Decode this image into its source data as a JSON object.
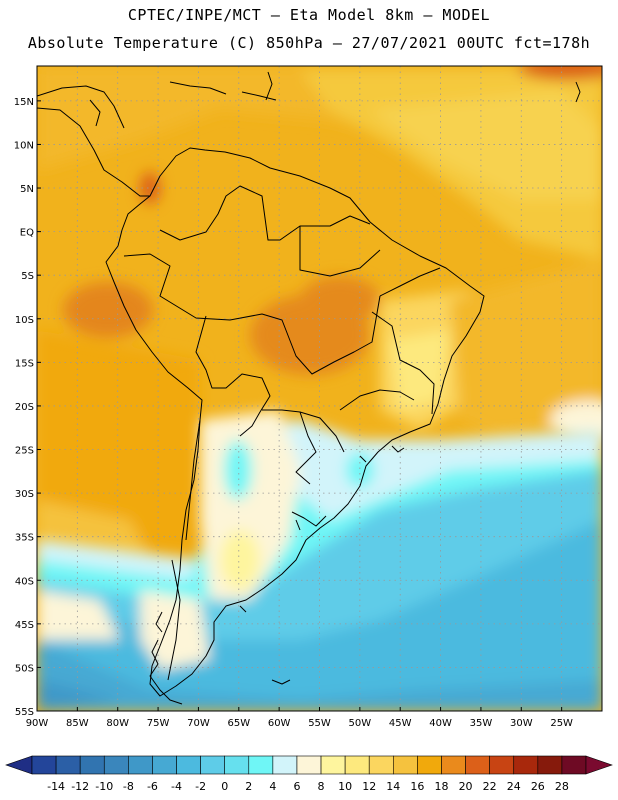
{
  "header": {
    "line1": "CPTEC/INPE/MCT –  Eta Model 8km – MODEL",
    "line2": "Absolute Temperature (C) 850hPa – 27/07/2021 00UTC fct=178h"
  },
  "axes": {
    "lat_labels": [
      "15N",
      "10N",
      "5N",
      "EQ",
      "5S",
      "10S",
      "15S",
      "20S",
      "25S",
      "30S",
      "35S",
      "40S",
      "45S",
      "50S",
      "55S"
    ],
    "lat_values": [
      15,
      10,
      5,
      0,
      -5,
      -10,
      -15,
      -20,
      -25,
      -30,
      -35,
      -40,
      -45,
      -50,
      -55
    ],
    "lon_labels": [
      "90W",
      "85W",
      "80W",
      "75W",
      "70W",
      "65W",
      "60W",
      "55W",
      "50W",
      "45W",
      "40W",
      "35W",
      "30W",
      "25W"
    ],
    "lon_values": [
      -90,
      -85,
      -80,
      -75,
      -70,
      -65,
      -60,
      -55,
      -50,
      -45,
      -40,
      -35,
      -30,
      -25
    ],
    "lat_range": [
      -55,
      19
    ],
    "lon_range": [
      -90,
      -20
    ],
    "grid": true
  },
  "colorbar": {
    "labels": [
      "-14",
      "-12",
      "-10",
      "-8",
      "-6",
      "-4",
      "-2",
      "0",
      "2",
      "4",
      "6",
      "8",
      "10",
      "12",
      "14",
      "16",
      "18",
      "20",
      "22",
      "24",
      "26",
      "28"
    ],
    "colors": [
      "#23459a",
      "#2b5fa6",
      "#3174b0",
      "#3a86bc",
      "#3f98c8",
      "#46a9d3",
      "#4cbadf",
      "#5ecce8",
      "#66e0ee",
      "#6ff6f6",
      "#d2f4fa",
      "#fdf5d8",
      "#fef59e",
      "#fde97e",
      "#fbd65f",
      "#f5c23e",
      "#f1a90c",
      "#ea8a1c",
      "#dc6019",
      "#c84413",
      "#a8280c",
      "#861a0c",
      "#6e0a24"
    ],
    "under_color": "#1f2e85",
    "over_color": "#7a0a2f"
  }
}
